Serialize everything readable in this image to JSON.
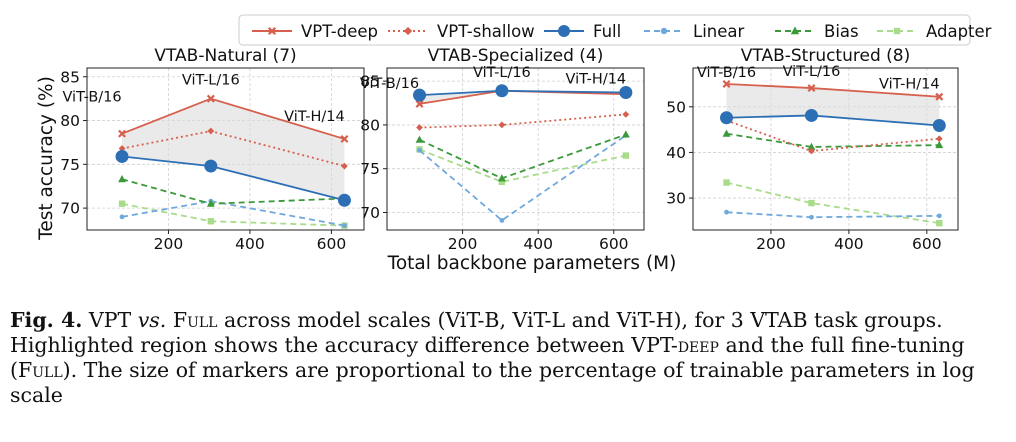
{
  "legend": [
    {
      "name": "VPT-deep",
      "color": "#d6604d",
      "dash": "",
      "marker": "x"
    },
    {
      "name": "VPT-shallow",
      "color": "#d6604d",
      "dash": "2 3",
      "marker": "diamond"
    },
    {
      "name": "Full",
      "color": "#2c6fb5",
      "dash": "",
      "marker": "circle"
    },
    {
      "name": "Linear",
      "color": "#6fa8dc",
      "dash": "6 4",
      "marker": "dot"
    },
    {
      "name": "Bias",
      "color": "#3a9a3a",
      "dash": "6 4",
      "marker": "triangle"
    },
    {
      "name": "Adapter",
      "color": "#a8dc8a",
      "dash": "6 4",
      "marker": "square"
    }
  ],
  "ylabel": "Test accuracy (%)",
  "xlabel": "Total backbone parameters (M)",
  "chart_data": [
    {
      "type": "line",
      "title": "VTAB-Natural (7)",
      "x": [
        86,
        304,
        632
      ],
      "point_labels": [
        "ViT-B/16",
        "ViT-L/16",
        "ViT-H/14"
      ],
      "xlim": [
        0,
        680
      ],
      "xticks": [
        200,
        400,
        600
      ],
      "ylim": [
        67.5,
        86
      ],
      "yticks": [
        70,
        75,
        80,
        85
      ],
      "series": [
        {
          "name": "VPT-deep",
          "values": [
            78.5,
            82.5,
            77.9
          ]
        },
        {
          "name": "VPT-shallow",
          "values": [
            76.8,
            78.8,
            74.8
          ]
        },
        {
          "name": "Full",
          "values": [
            75.9,
            74.8,
            70.9
          ]
        },
        {
          "name": "Linear",
          "values": [
            69.0,
            70.8,
            68.0
          ]
        },
        {
          "name": "Bias",
          "values": [
            73.3,
            70.5,
            71.1
          ]
        },
        {
          "name": "Adapter",
          "values": [
            70.5,
            68.5,
            68.0
          ]
        }
      ]
    },
    {
      "type": "line",
      "title": "VTAB-Specialized (4)",
      "x": [
        86,
        304,
        632
      ],
      "point_labels": [
        "ViT-B/16",
        "ViT-L/16",
        "ViT-H/14"
      ],
      "xlim": [
        0,
        680
      ],
      "xticks": [
        200,
        400,
        600
      ],
      "ylim": [
        68,
        86.5
      ],
      "yticks": [
        70,
        75,
        80,
        85
      ],
      "series": [
        {
          "name": "VPT-deep",
          "values": [
            82.4,
            83.9,
            83.5
          ]
        },
        {
          "name": "VPT-shallow",
          "values": [
            79.7,
            80.0,
            81.2
          ]
        },
        {
          "name": "Full",
          "values": [
            83.4,
            83.9,
            83.7
          ]
        },
        {
          "name": "Linear",
          "values": [
            77.1,
            69.1,
            78.8
          ]
        },
        {
          "name": "Bias",
          "values": [
            78.3,
            73.9,
            78.9
          ]
        },
        {
          "name": "Adapter",
          "values": [
            77.2,
            73.5,
            76.5
          ]
        }
      ]
    },
    {
      "type": "line",
      "title": "VTAB-Structured (8)",
      "x": [
        86,
        304,
        632
      ],
      "point_labels": [
        "ViT-B/16",
        "ViT-L/16",
        "ViT-H/14"
      ],
      "xlim": [
        0,
        680
      ],
      "xticks": [
        200,
        400,
        600
      ],
      "ylim": [
        23,
        58.5
      ],
      "yticks": [
        30,
        40,
        50
      ],
      "series": [
        {
          "name": "VPT-deep",
          "values": [
            55.0,
            54.1,
            52.2
          ]
        },
        {
          "name": "VPT-shallow",
          "values": [
            47.0,
            40.3,
            43.0
          ]
        },
        {
          "name": "Full",
          "values": [
            47.6,
            48.1,
            45.9
          ]
        },
        {
          "name": "Linear",
          "values": [
            26.9,
            25.8,
            26.1
          ]
        },
        {
          "name": "Bias",
          "values": [
            44.1,
            41.2,
            41.6
          ]
        },
        {
          "name": "Adapter",
          "values": [
            33.4,
            28.9,
            24.5
          ]
        }
      ]
    }
  ],
  "caption": {
    "label": "Fig. 4.",
    "part1": "VPT ",
    "vs": "vs.",
    "full1": "Full",
    "part2": " across model scales (ViT-B, ViT-L and ViT-H), for 3 VTAB task groups. Highlighted region shows the accuracy difference between VPT-",
    "deep": "deep",
    "part3": " and the full fine-tuning (",
    "full2": "Full",
    "part4": "). The size of markers are proportional to the percentage of trainable parameters in log scale"
  }
}
